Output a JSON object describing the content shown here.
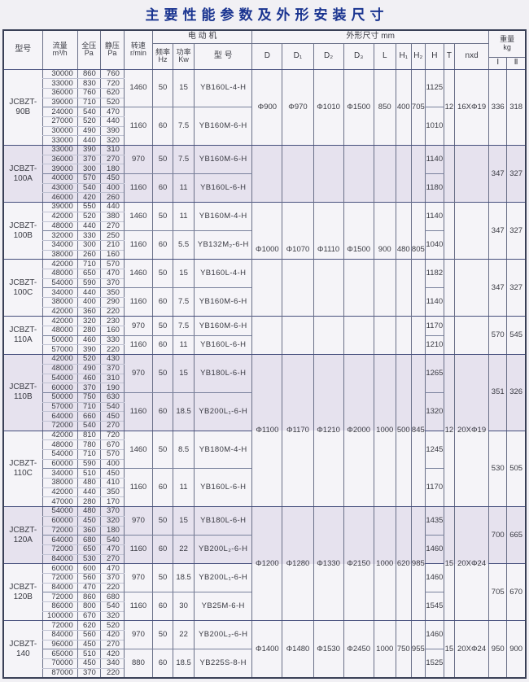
{
  "title": "主要性能参数及外形安装尺寸",
  "header": {
    "model": "型号",
    "flow": [
      "流量",
      "m³/h"
    ],
    "total_pressure": [
      "全压",
      "Pa"
    ],
    "static_pressure": [
      "静压",
      "Pa"
    ],
    "speed": [
      "转速",
      "r/min"
    ],
    "motor_group": "电 动 机",
    "freq": [
      "频率",
      "Hz"
    ],
    "power": [
      "功率",
      "Kw"
    ],
    "motor_model": "型 号",
    "dims_group": "外形尺寸 mm",
    "dim_cols": [
      "D",
      "D₁",
      "D₂",
      "D₃",
      "L",
      "H₁",
      "H₂",
      "H",
      "T",
      "nxd"
    ],
    "weight_group": [
      "重量",
      "kg"
    ],
    "weight_cols": [
      "Ⅰ",
      "Ⅱ"
    ]
  },
  "size_groups": [
    {
      "dims": [
        "Φ900",
        "Φ970",
        "Φ1010",
        "Φ1500",
        "850",
        "400",
        "705"
      ],
      "t": "12",
      "nxd": "16XΦ19",
      "models": [
        {
          "model": [
            "JCBZT-",
            "90B"
          ],
          "weights": [
            "336",
            "318"
          ],
          "tinted": false,
          "subs": [
            {
              "speed": "1460",
              "hz": "50",
              "kw": "15",
              "motor": "YB160L-4-H",
              "h": "1125",
              "rows": [
                [
                  "30000",
                  "860",
                  "760"
                ],
                [
                  "33000",
                  "830",
                  "720"
                ],
                [
                  "36000",
                  "760",
                  "620"
                ],
                [
                  "39000",
                  "710",
                  "520"
                ]
              ]
            },
            {
              "speed": "1160",
              "hz": "60",
              "kw": "7.5",
              "motor": "YB160M-6-H",
              "h": "1010",
              "rows": [
                [
                  "24000",
                  "540",
                  "470"
                ],
                [
                  "27000",
                  "520",
                  "440"
                ],
                [
                  "30000",
                  "490",
                  "390"
                ],
                [
                  "33000",
                  "440",
                  "320"
                ]
              ]
            }
          ]
        }
      ]
    },
    {
      "dims": [
        "Φ1000",
        "Φ1070",
        "Φ1110",
        "Φ1500",
        "900",
        "480",
        "805"
      ],
      "t": "",
      "nxd": "",
      "models": [
        {
          "model": [
            "JCBZT-",
            "100A"
          ],
          "weights": [
            "347",
            "327"
          ],
          "tinted": true,
          "subs": [
            {
              "speed": "970",
              "hz": "50",
              "kw": "7.5",
              "motor": "YB160M-6-H",
              "h": "1140",
              "rows": [
                [
                  "33000",
                  "390",
                  "310"
                ],
                [
                  "36000",
                  "370",
                  "270"
                ],
                [
                  "39000",
                  "300",
                  "180"
                ]
              ]
            },
            {
              "speed": "1160",
              "hz": "60",
              "kw": "11",
              "motor": "YB160L-6-H",
              "h": "1180",
              "rows": [
                [
                  "40000",
                  "570",
                  "450"
                ],
                [
                  "43000",
                  "540",
                  "400"
                ],
                [
                  "46000",
                  "420",
                  "260"
                ]
              ]
            }
          ]
        },
        {
          "model": [
            "JCBZT-",
            "100B"
          ],
          "weights": [
            "347",
            "327"
          ],
          "tinted": false,
          "subs": [
            {
              "speed": "1460",
              "hz": "50",
              "kw": "11",
              "motor": "YB160M-4-H",
              "h": "1140",
              "rows": [
                [
                  "39000",
                  "550",
                  "440"
                ],
                [
                  "42000",
                  "520",
                  "380"
                ],
                [
                  "48000",
                  "440",
                  "270"
                ]
              ]
            },
            {
              "speed": "1160",
              "hz": "60",
              "kw": "5.5",
              "motor": "YB132M₂-6-H",
              "h": "1040",
              "rows": [
                [
                  "32000",
                  "330",
                  "250"
                ],
                [
                  "34000",
                  "300",
                  "210"
                ],
                [
                  "38000",
                  "260",
                  "160"
                ]
              ]
            }
          ]
        },
        {
          "model": [
            "JCBZT-",
            "100C"
          ],
          "weights": [
            "347",
            "327"
          ],
          "tinted": false,
          "subs": [
            {
              "speed": "1460",
              "hz": "50",
              "kw": "15",
              "motor": "YB160L-4-H",
              "h": "1182",
              "rows": [
                [
                  "42000",
                  "710",
                  "570"
                ],
                [
                  "48000",
                  "650",
                  "470"
                ],
                [
                  "54000",
                  "590",
                  "370"
                ]
              ]
            },
            {
              "speed": "1160",
              "hz": "60",
              "kw": "7.5",
              "motor": "YB160M-6-H",
              "h": "1140",
              "rows": [
                [
                  "34000",
                  "440",
                  "350"
                ],
                [
                  "38000",
                  "400",
                  "290"
                ],
                [
                  "42000",
                  "360",
                  "220"
                ]
              ]
            }
          ]
        },
        {
          "model": [
            "JCBZT-",
            "110A"
          ],
          "weights": [
            "570",
            "545"
          ],
          "tinted": false,
          "subs": [
            {
              "speed": "970",
              "hz": "50",
              "kw": "7.5",
              "motor": "YB160M-6-H",
              "h": "1170",
              "rows": [
                [
                  "42000",
                  "320",
                  "230"
                ],
                [
                  "48000",
                  "280",
                  "160"
                ]
              ]
            },
            {
              "speed": "1160",
              "hz": "60",
              "kw": "11",
              "motor": "YB160L-6-H",
              "h": "1210",
              "rows": [
                [
                  "50000",
                  "460",
                  "330"
                ],
                [
                  "57000",
                  "390",
                  "220"
                ]
              ]
            }
          ]
        }
      ]
    },
    {
      "dims": [
        "Φ1100",
        "Φ1170",
        "Φ1210",
        "Φ2000",
        "1000",
        "500",
        "845"
      ],
      "t": "12",
      "nxd": "20XΦ19",
      "models": [
        {
          "model": [
            "JCBZT-",
            "110B"
          ],
          "weights": [
            "351",
            "326"
          ],
          "tinted": true,
          "subs": [
            {
              "speed": "970",
              "hz": "50",
              "kw": "15",
              "motor": "YB180L-6-H",
              "h": "1265",
              "rows": [
                [
                  "42000",
                  "520",
                  "430"
                ],
                [
                  "48000",
                  "490",
                  "370"
                ],
                [
                  "54000",
                  "460",
                  "310"
                ],
                [
                  "60000",
                  "370",
                  "190"
                ]
              ]
            },
            {
              "speed": "1160",
              "hz": "60",
              "kw": "18.5",
              "motor": "YB200L₁-6-H",
              "h": "1320",
              "rows": [
                [
                  "50000",
                  "750",
                  "630"
                ],
                [
                  "57000",
                  "710",
                  "540"
                ],
                [
                  "64000",
                  "660",
                  "450"
                ],
                [
                  "72000",
                  "540",
                  "270"
                ]
              ]
            }
          ]
        },
        {
          "model": [
            "JCBZT-",
            "110C"
          ],
          "weights": [
            "530",
            "505"
          ],
          "tinted": false,
          "subs": [
            {
              "speed": "1460",
              "hz": "50",
              "kw": "8.5",
              "motor": "YB180M-4-H",
              "h": "1245",
              "rows": [
                [
                  "42000",
                  "810",
                  "720"
                ],
                [
                  "48000",
                  "780",
                  "670"
                ],
                [
                  "54000",
                  "710",
                  "570"
                ],
                [
                  "60000",
                  "590",
                  "400"
                ]
              ]
            },
            {
              "speed": "1160",
              "hz": "60",
              "kw": "11",
              "motor": "YB160L-6-H",
              "h": "1170",
              "rows": [
                [
                  "34000",
                  "510",
                  "450"
                ],
                [
                  "38000",
                  "480",
                  "410"
                ],
                [
                  "42000",
                  "440",
                  "350"
                ],
                [
                  "47000",
                  "280",
                  "170"
                ]
              ]
            }
          ]
        }
      ]
    },
    {
      "dims": [
        "Φ1200",
        "Φ1280",
        "Φ1330",
        "Φ2150",
        "1000",
        "620",
        "985"
      ],
      "t": "15",
      "nxd": "20XΦ24",
      "models": [
        {
          "model": [
            "JCBZT-",
            "120A"
          ],
          "weights": [
            "700",
            "665"
          ],
          "tinted": true,
          "subs": [
            {
              "speed": "970",
              "hz": "50",
              "kw": "15",
              "motor": "YB180L-6-H",
              "h": "1435",
              "rows": [
                [
                  "54000",
                  "480",
                  "370"
                ],
                [
                  "60000",
                  "450",
                  "320"
                ],
                [
                  "72000",
                  "360",
                  "180"
                ]
              ]
            },
            {
              "speed": "1160",
              "hz": "60",
              "kw": "22",
              "motor": "YB200L₂-6-H",
              "h": "1460",
              "rows": [
                [
                  "64000",
                  "680",
                  "540"
                ],
                [
                  "72000",
                  "650",
                  "470"
                ],
                [
                  "84000",
                  "530",
                  "270"
                ]
              ]
            }
          ]
        },
        {
          "model": [
            "JCBZT-",
            "120B"
          ],
          "weights": [
            "705",
            "670"
          ],
          "tinted": false,
          "subs": [
            {
              "speed": "970",
              "hz": "50",
              "kw": "18.5",
              "motor": "YB200L₁-6-H",
              "h": "1460",
              "rows": [
                [
                  "60000",
                  "600",
                  "470"
                ],
                [
                  "72000",
                  "560",
                  "370"
                ],
                [
                  "84000",
                  "470",
                  "220"
                ]
              ]
            },
            {
              "speed": "1160",
              "hz": "60",
              "kw": "30",
              "motor": "YB25M-6-H",
              "h": "1545",
              "rows": [
                [
                  "72000",
                  "860",
                  "680"
                ],
                [
                  "86000",
                  "800",
                  "540"
                ],
                [
                  "100000",
                  "670",
                  "320"
                ]
              ]
            }
          ]
        }
      ]
    },
    {
      "dims": [
        "Φ1400",
        "Φ1480",
        "Φ1530",
        "Φ2450",
        "1000",
        "750",
        "955"
      ],
      "t": "15",
      "nxd": "20XΦ24",
      "models": [
        {
          "model": [
            "JCBZT-",
            "140"
          ],
          "weights": [
            "950",
            "900"
          ],
          "tinted": false,
          "subs": [
            {
              "speed": "970",
              "hz": "50",
              "kw": "22",
              "motor": "YB200L₂-6-H",
              "h": "1460",
              "rows": [
                [
                  "72000",
                  "620",
                  "520"
                ],
                [
                  "84000",
                  "560",
                  "420"
                ],
                [
                  "96000",
                  "450",
                  "270"
                ]
              ]
            },
            {
              "speed": "880",
              "hz": "60",
              "kw": "18.5",
              "motor": "YB225S-8-H",
              "h": "1525",
              "rows": [
                [
                  "65000",
                  "510",
                  "420"
                ],
                [
                  "70000",
                  "450",
                  "340"
                ],
                [
                  "87000",
                  "370",
                  "220"
                ]
              ]
            }
          ]
        }
      ]
    }
  ]
}
